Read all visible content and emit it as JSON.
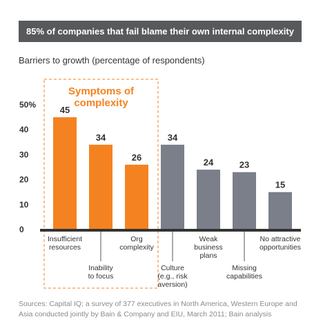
{
  "banner": "85% of companies that fail blame their own internal complexity",
  "subtitle": "Barriers to growth (percentage of respondents)",
  "group_label": [
    "Symptoms of",
    "complexity"
  ],
  "source": "Sources: Capital IQ; a survey of 377 executives in North America, Western Europe and Asia conducted jointly by Bain & Company and EIU, March 2011; Bain analysis",
  "colors": {
    "orange": "#f58220",
    "gray": "#7a7f89",
    "axis": "#333333"
  },
  "chart_data": {
    "type": "bar",
    "title": "Barriers to growth (percentage of respondents)",
    "categories": [
      "Insufficient resources",
      "Inability to focus",
      "Org complexity",
      "Culture (e.g., risk aversion)",
      "Weak business plans",
      "Missing capabilities",
      "No attractive opportunities"
    ],
    "category_lines": [
      [
        "Insufficient",
        "resources"
      ],
      [
        "Inability",
        "to focus"
      ],
      [
        "Org",
        "complexity"
      ],
      [
        "Culture",
        "(e.g., risk",
        "aversion)"
      ],
      [
        "Weak",
        "business",
        "plans"
      ],
      [
        "Missing",
        "capabilities"
      ],
      [
        "No attractive",
        "opportunities"
      ]
    ],
    "label_position": [
      "top",
      "low",
      "top",
      "low",
      "top",
      "low",
      "top"
    ],
    "values": [
      45,
      34,
      26,
      34,
      24,
      23,
      15
    ],
    "groups": [
      "symptom",
      "symptom",
      "symptom",
      "other",
      "other",
      "other",
      "other"
    ],
    "yticks": [
      "0",
      "10",
      "20",
      "30",
      "40",
      "50%"
    ],
    "ylim": [
      0,
      50
    ],
    "grid": false
  }
}
